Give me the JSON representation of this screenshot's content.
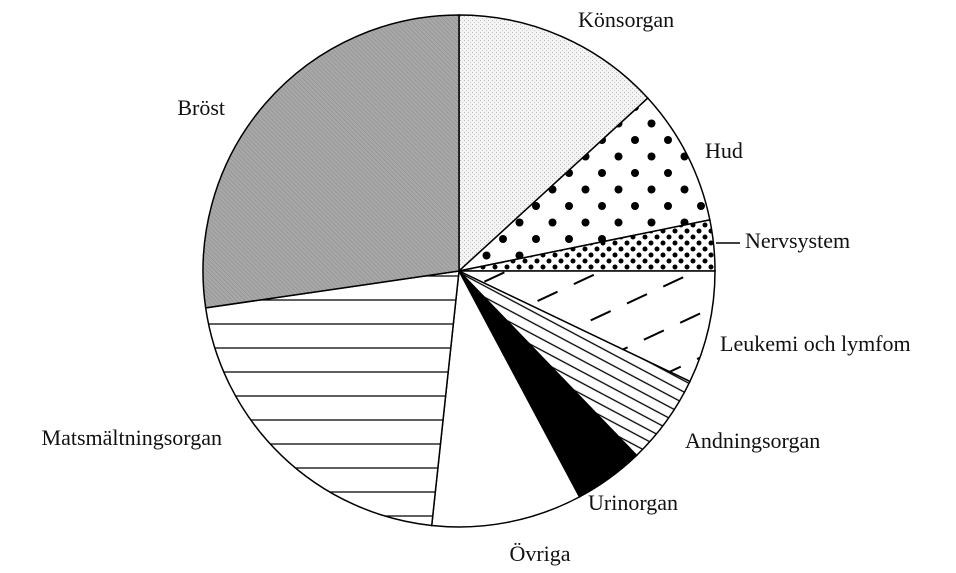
{
  "chart_data": {
    "type": "pie",
    "categories": [
      "Könsorgan",
      "Hud",
      "Nervsystem",
      "Leukemi och lymfom",
      "Andningsorgan",
      "Urinorgan",
      "Övriga",
      "Matsmältningsorgan",
      "Bröst"
    ],
    "values": [
      13.2,
      8.6,
      3.2,
      7.1,
      5.7,
      4.4,
      9.5,
      21.0,
      27.3
    ]
  }
}
